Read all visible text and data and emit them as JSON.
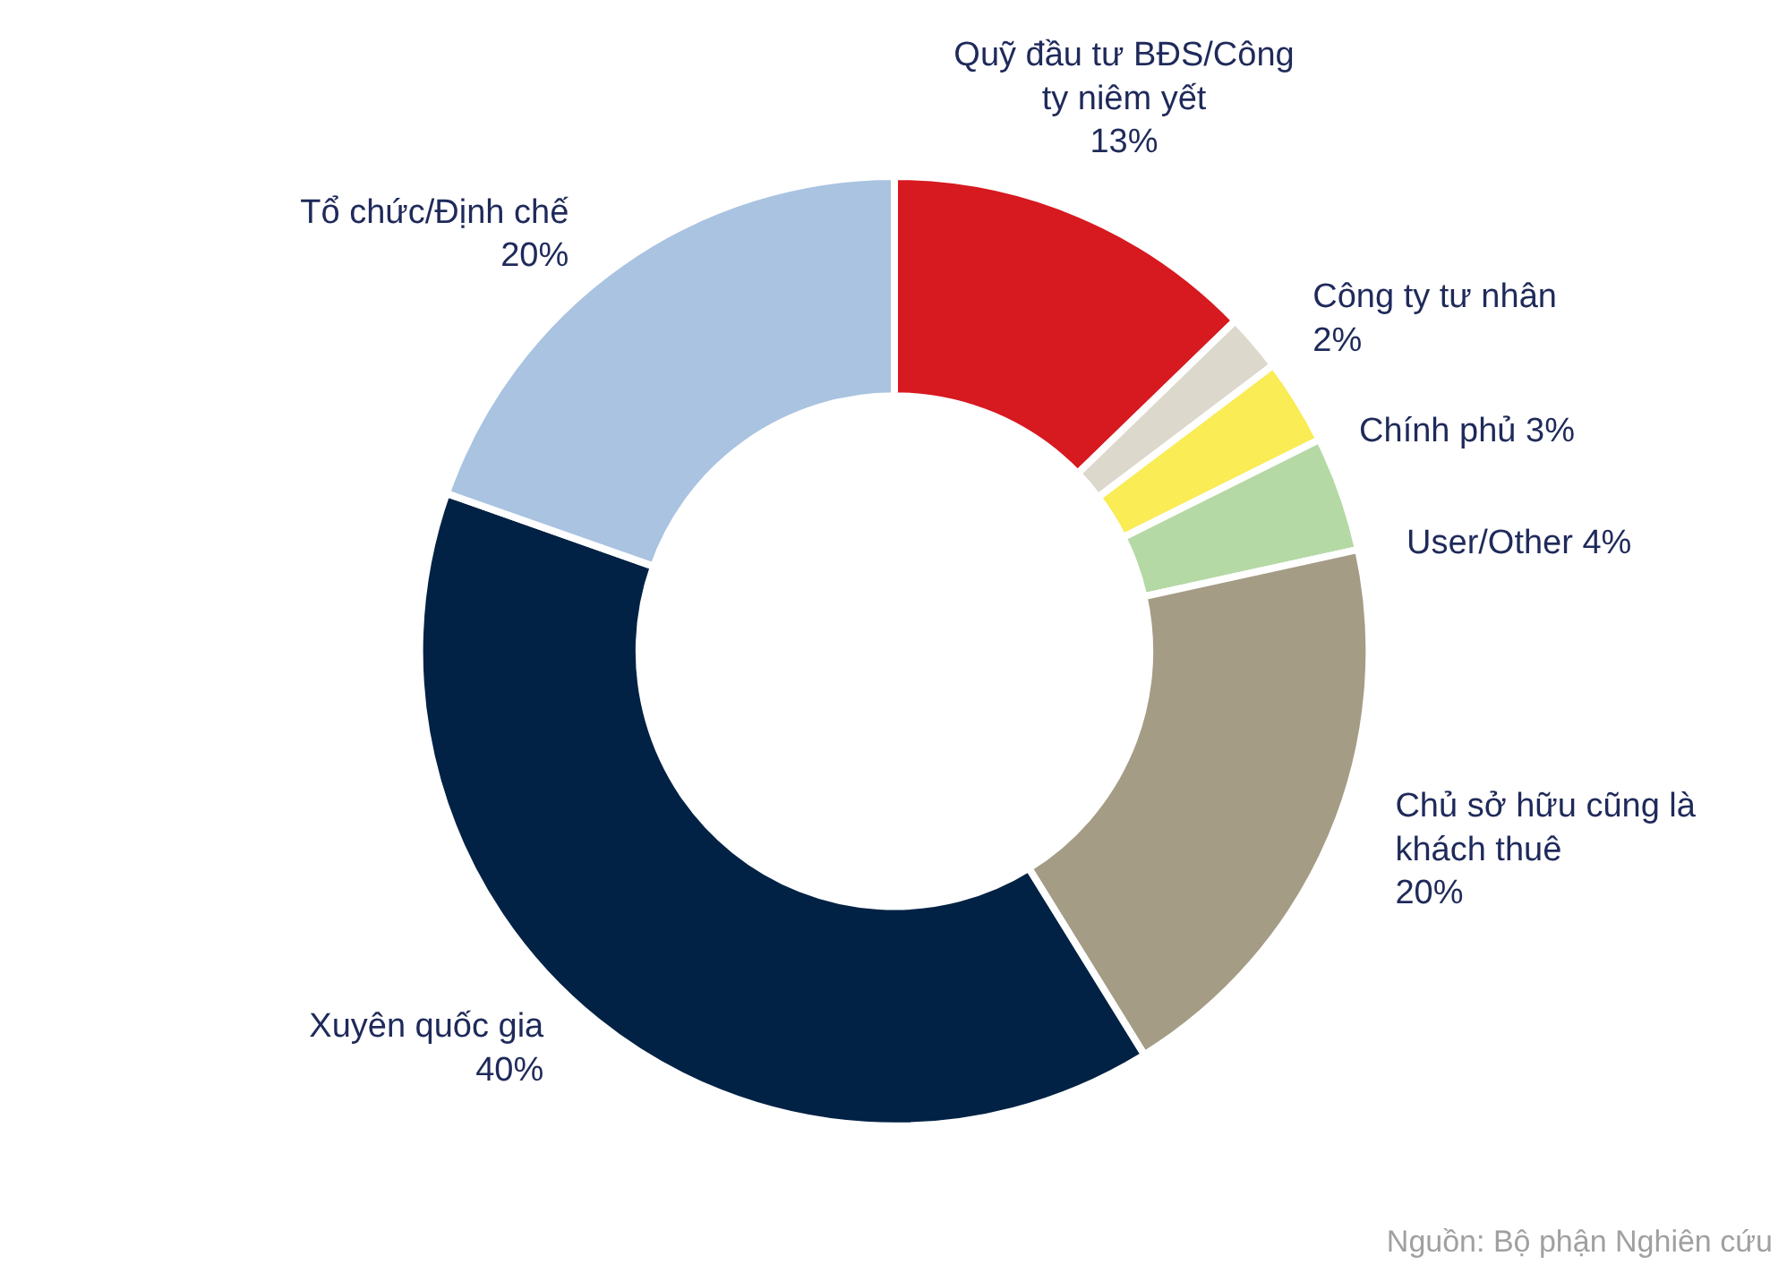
{
  "chart_data": {
    "type": "donut",
    "categories": [
      "Quỹ đầu tư BĐS/Công ty niêm yết",
      "Công ty tư nhân",
      "Chính phủ",
      "User/Other",
      "Chủ sở hữu cũng là khách thuê",
      "Xuyên quốc gia",
      "Tổ chức/Định chế"
    ],
    "values": [
      13,
      2,
      3,
      4,
      20,
      40,
      20
    ],
    "value_labels": [
      "13%",
      "2%",
      "3%",
      "4%",
      "20%",
      "40%",
      "20%"
    ],
    "colors": [
      "#d71920",
      "#ddd8cc",
      "#f9ec55",
      "#b5d9a5",
      "#a59c86",
      "#012244",
      "#a9c3e1"
    ],
    "annotations": [
      "Nguồn: Bộ phận Nghiên cứu"
    ]
  }
}
